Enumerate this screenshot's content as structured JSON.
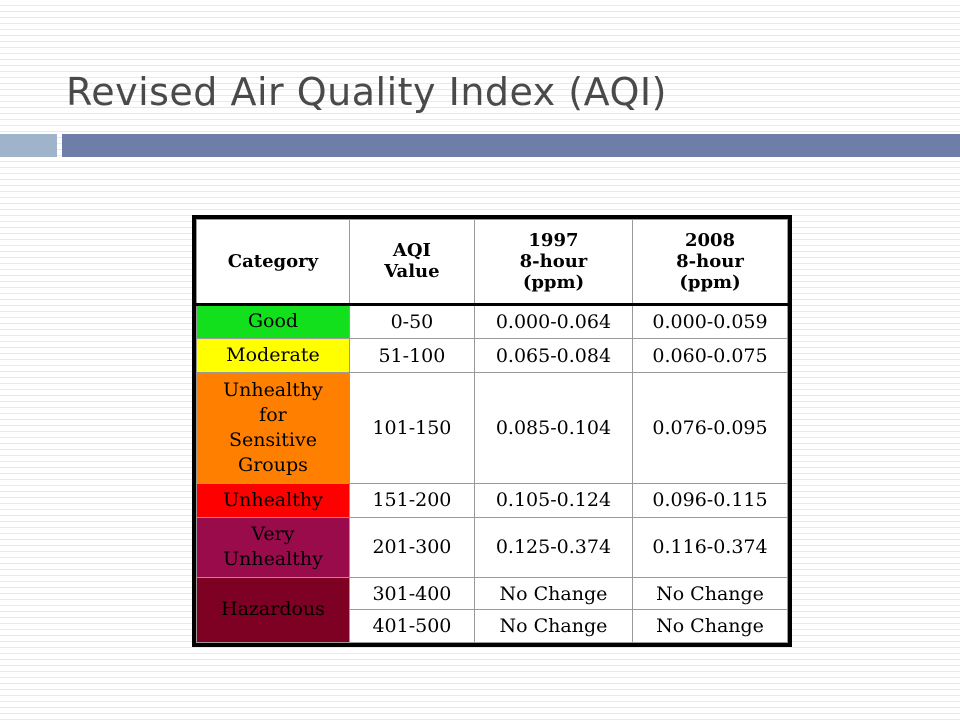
{
  "slide": {
    "title": "Revised Air Quality Index (AQI)"
  },
  "table": {
    "headers": {
      "category": "Category",
      "aqi_line1": "AQI",
      "aqi_line2": "Value",
      "y1997_line1": "1997",
      "y1997_line2": "8-hour",
      "y1997_line3": "(ppm)",
      "y2008_line1": "2008",
      "y2008_line2": "8-hour",
      "y2008_line3": "(ppm)"
    },
    "rows": [
      {
        "category": "Good",
        "aqi": "0-50",
        "y1997": "0.000-0.064",
        "y2008": "0.000-0.059",
        "color": "#12e01c"
      },
      {
        "category": "Moderate",
        "aqi": "51-100",
        "y1997": "0.065-0.084",
        "y2008": "0.060-0.075",
        "color": "#ffff00"
      },
      {
        "category_lines": [
          "Unhealthy",
          "for",
          "Sensitive",
          "Groups"
        ],
        "aqi": "101-150",
        "y1997": "0.085-0.104",
        "y2008": "0.076-0.095",
        "color": "#ff7f00"
      },
      {
        "category": "Unhealthy",
        "aqi": "151-200",
        "y1997": "0.105-0.124",
        "y2008": "0.096-0.115",
        "color": "#ff0000"
      },
      {
        "category_lines": [
          "Very",
          "Unhealthy"
        ],
        "aqi": "201-300",
        "y1997": "0.125-0.374",
        "y2008": "0.116-0.374",
        "color": "#9a0b4c"
      },
      {
        "category": "Hazardous",
        "aqi": "301-400",
        "y1997": "No Change",
        "y2008": "No Change",
        "color": "#7e0023"
      },
      {
        "aqi": "401-500",
        "y1997": "No Change",
        "y2008": "No Change"
      }
    ]
  }
}
